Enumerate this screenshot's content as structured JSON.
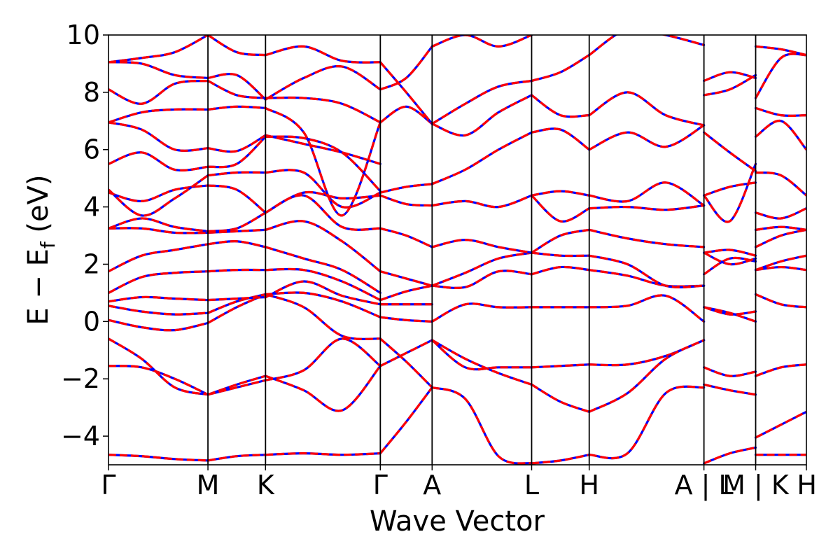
{
  "chart_data": {
    "type": "line",
    "title": "",
    "xlabel": "Wave Vector",
    "ylabel": "E − E",
    "ylabel_subscript": "f",
    "ylabel_unit": " (eV)",
    "ylim": [
      -5,
      10
    ],
    "yticks": [
      {
        "value": -4,
        "label": "−4"
      },
      {
        "value": -2,
        "label": "−2"
      },
      {
        "value": 0,
        "label": "0"
      },
      {
        "value": 2,
        "label": "2"
      },
      {
        "value": 4,
        "label": "4"
      },
      {
        "value": 6,
        "label": "6"
      },
      {
        "value": 8,
        "label": "8"
      },
      {
        "value": 10,
        "label": "10"
      }
    ],
    "high_symmetry_points": [
      {
        "label": "Γ",
        "k": 0.0
      },
      {
        "label": "M",
        "k": 0.1425
      },
      {
        "label": "K",
        "k": 0.225
      },
      {
        "label": "Γ",
        "k": 0.3895
      },
      {
        "label": "A",
        "k": 0.4637
      },
      {
        "label": "L",
        "k": 0.6063
      },
      {
        "label": "H",
        "k": 0.6888
      },
      {
        "label": "A | L",
        "k": 0.8532
      },
      {
        "label": "M | K",
        "k": 0.9273
      },
      {
        "label": "H",
        "k": 1.0
      }
    ],
    "grid": false,
    "line_styles": [
      {
        "color": "#0000ff",
        "style": "solid"
      },
      {
        "color": "#ff0000",
        "style": "dashed"
      }
    ],
    "segments": [
      {
        "from": "Γ",
        "to": "M",
        "k_range": [
          0.0,
          0.1425
        ],
        "bands": [
          [
            -4.65,
            -4.7,
            -4.8,
            -4.85
          ],
          [
            -1.55,
            -1.6,
            -2.0,
            -2.55
          ],
          [
            -0.6,
            -1.3,
            -2.3,
            -2.55
          ],
          [
            0.05,
            -0.2,
            -0.3,
            -0.05
          ],
          [
            0.55,
            0.35,
            0.25,
            0.3
          ],
          [
            0.7,
            0.85,
            0.8,
            0.75
          ],
          [
            1.0,
            1.55,
            1.7,
            1.75
          ],
          [
            1.75,
            2.3,
            2.5,
            2.7
          ],
          [
            3.25,
            3.25,
            3.1,
            3.1
          ],
          [
            3.25,
            3.6,
            3.3,
            3.15
          ],
          [
            4.5,
            4.2,
            4.6,
            4.75
          ],
          [
            4.6,
            3.7,
            4.3,
            5.1
          ],
          [
            5.5,
            5.9,
            5.3,
            5.4
          ],
          [
            6.95,
            6.7,
            6.0,
            6.05
          ],
          [
            6.95,
            7.3,
            7.4,
            7.4
          ],
          [
            8.1,
            7.6,
            8.3,
            8.4
          ],
          [
            9.05,
            9.0,
            8.6,
            8.5
          ],
          [
            9.05,
            9.2,
            9.4,
            10.0
          ]
        ]
      },
      {
        "from": "M",
        "to": "K",
        "k_range": [
          0.1425,
          0.225
        ],
        "bands": [
          [
            -4.85,
            -4.7,
            -4.65
          ],
          [
            -2.55,
            -2.2,
            -1.9
          ],
          [
            -2.55,
            -2.3,
            -2.05
          ],
          [
            -0.05,
            0.5,
            0.95
          ],
          [
            0.3,
            0.7,
            0.95
          ],
          [
            0.75,
            0.8,
            0.85
          ],
          [
            1.75,
            1.8,
            1.8
          ],
          [
            2.7,
            2.8,
            2.6
          ],
          [
            3.1,
            3.15,
            3.2
          ],
          [
            3.15,
            3.25,
            3.8
          ],
          [
            4.75,
            4.6,
            3.8
          ],
          [
            5.1,
            5.2,
            5.2
          ],
          [
            5.4,
            5.5,
            6.45
          ],
          [
            6.05,
            5.95,
            6.5
          ],
          [
            7.4,
            7.5,
            7.45
          ],
          [
            8.4,
            7.9,
            7.8
          ],
          [
            8.5,
            8.6,
            7.75
          ],
          [
            10.0,
            9.4,
            9.3
          ]
        ]
      },
      {
        "from": "K",
        "to": "Γ",
        "k_range": [
          0.225,
          0.3895
        ],
        "bands": [
          [
            -4.65,
            -4.6,
            -4.65,
            -4.6
          ],
          [
            -1.9,
            -2.4,
            -3.1,
            -1.55
          ],
          [
            -2.05,
            -1.7,
            -0.6,
            -1.55
          ],
          [
            0.95,
            0.5,
            -0.5,
            -0.6
          ],
          [
            0.95,
            1.0,
            0.7,
            0.15
          ],
          [
            0.85,
            1.4,
            0.9,
            0.6
          ],
          [
            1.8,
            1.8,
            1.4,
            0.75
          ],
          [
            2.6,
            2.2,
            1.8,
            1.0
          ],
          [
            3.2,
            3.5,
            2.8,
            1.75
          ],
          [
            3.8,
            4.4,
            3.3,
            3.25
          ],
          [
            3.8,
            4.5,
            4.3,
            4.4
          ],
          [
            5.2,
            5.2,
            4.0,
            4.5
          ],
          [
            6.45,
            6.4,
            5.9,
            4.55
          ],
          [
            6.5,
            6.2,
            5.9,
            5.5
          ],
          [
            7.45,
            6.6,
            3.7,
            6.95
          ],
          [
            7.8,
            7.8,
            7.6,
            6.95
          ],
          [
            7.75,
            8.5,
            8.9,
            8.1
          ],
          [
            9.3,
            9.6,
            9.1,
            9.05
          ]
        ]
      },
      {
        "from": "Γ",
        "to": "A",
        "k_range": [
          0.3895,
          0.4637
        ],
        "bands": [
          [
            -4.6,
            -3.5,
            -2.3
          ],
          [
            -1.55,
            -1.1,
            -0.65
          ],
          [
            -0.6,
            -1.4,
            -2.3
          ],
          [
            0.15,
            0.05,
            0.0
          ],
          [
            0.6,
            0.6,
            0.6
          ],
          [
            0.75,
            1.05,
            1.25
          ],
          [
            1.75,
            1.5,
            1.25
          ],
          [
            3.25,
            3.0,
            2.6
          ],
          [
            4.4,
            4.1,
            4.05
          ],
          [
            4.5,
            4.7,
            4.8
          ],
          [
            6.95,
            7.5,
            6.9
          ],
          [
            8.1,
            8.5,
            9.6
          ],
          [
            9.05,
            8.0,
            6.9
          ]
        ]
      },
      {
        "from": "A",
        "to": "L",
        "k_range": [
          0.4637,
          0.6063
        ],
        "bands": [
          [
            -2.3,
            -2.7,
            -4.7,
            -4.95
          ],
          [
            -0.65,
            -1.6,
            -1.6,
            -1.6
          ],
          [
            -0.65,
            -1.3,
            -1.8,
            -2.2
          ],
          [
            0.0,
            0.6,
            0.5,
            0.5
          ],
          [
            1.25,
            1.2,
            1.75,
            1.65
          ],
          [
            1.25,
            1.7,
            2.2,
            2.4
          ],
          [
            2.6,
            2.85,
            2.6,
            2.4
          ],
          [
            4.05,
            4.2,
            4.0,
            4.4
          ],
          [
            4.8,
            5.3,
            6.0,
            6.6
          ],
          [
            6.9,
            6.5,
            7.3,
            7.9
          ],
          [
            6.9,
            7.6,
            8.2,
            8.4
          ],
          [
            9.6,
            10.0,
            9.6,
            10.0
          ]
        ]
      },
      {
        "from": "L",
        "to": "H",
        "k_range": [
          0.6063,
          0.6888
        ],
        "bands": [
          [
            -4.95,
            -4.85,
            -4.65
          ],
          [
            -1.6,
            -1.55,
            -1.5
          ],
          [
            -2.2,
            -2.8,
            -3.15
          ],
          [
            0.5,
            0.5,
            0.5
          ],
          [
            1.65,
            1.9,
            1.8
          ],
          [
            2.4,
            2.3,
            2.3
          ],
          [
            2.4,
            3.0,
            3.2
          ],
          [
            4.4,
            4.55,
            4.4
          ],
          [
            4.4,
            3.5,
            3.95
          ],
          [
            6.6,
            6.7,
            6.0
          ],
          [
            7.9,
            7.2,
            7.2
          ],
          [
            8.4,
            8.7,
            9.3
          ]
        ]
      },
      {
        "from": "H",
        "to": "A",
        "k_range": [
          0.6888,
          0.8532
        ],
        "bands": [
          [
            -4.65,
            -4.6,
            -2.5,
            -2.3
          ],
          [
            -1.5,
            -1.5,
            -1.2,
            -0.65
          ],
          [
            -3.15,
            -2.5,
            -1.3,
            -0.65
          ],
          [
            0.5,
            0.55,
            0.9,
            0.0
          ],
          [
            1.8,
            1.6,
            1.25,
            1.25
          ],
          [
            2.3,
            2.0,
            1.25,
            1.25
          ],
          [
            3.2,
            2.9,
            2.7,
            2.6
          ],
          [
            4.4,
            4.2,
            4.85,
            4.05
          ],
          [
            3.95,
            4.0,
            3.9,
            4.05
          ],
          [
            6.0,
            6.6,
            6.1,
            6.85
          ],
          [
            7.2,
            8.0,
            7.2,
            6.85
          ],
          [
            9.3,
            10.2,
            10.0,
            9.65
          ]
        ]
      },
      {
        "from": "L",
        "to": "M",
        "k_range": [
          0.8532,
          0.9273
        ],
        "bands": [
          [
            -4.95,
            -4.6,
            -4.4
          ],
          [
            -1.6,
            -1.9,
            -1.75
          ],
          [
            -2.2,
            -2.4,
            -2.55
          ],
          [
            0.5,
            0.3,
            0.0
          ],
          [
            0.5,
            0.25,
            0.35
          ],
          [
            1.65,
            2.2,
            2.1
          ],
          [
            2.4,
            2.5,
            2.3
          ],
          [
            2.4,
            2.0,
            2.2
          ],
          [
            4.4,
            3.5,
            5.5
          ],
          [
            4.4,
            4.7,
            4.85
          ],
          [
            6.6,
            5.9,
            5.25
          ],
          [
            7.9,
            8.1,
            8.6
          ],
          [
            8.4,
            8.7,
            8.5
          ]
        ]
      },
      {
        "from": "K",
        "to": "H",
        "k_range": [
          0.9273,
          1.0
        ],
        "bands": [
          [
            -4.65,
            -4.65,
            -4.65
          ],
          [
            -1.9,
            -1.6,
            -1.5
          ],
          [
            -4.05,
            -3.6,
            -3.15
          ],
          [
            0.95,
            0.6,
            0.5
          ],
          [
            1.8,
            1.9,
            1.8
          ],
          [
            1.8,
            2.1,
            2.3
          ],
          [
            2.6,
            3.0,
            3.2
          ],
          [
            3.2,
            3.3,
            3.2
          ],
          [
            3.8,
            3.6,
            3.95
          ],
          [
            5.2,
            5.1,
            4.4
          ],
          [
            6.45,
            7.0,
            6.0
          ],
          [
            7.45,
            7.2,
            7.2
          ],
          [
            7.8,
            9.2,
            9.3
          ],
          [
            9.6,
            9.5,
            9.3
          ]
        ]
      }
    ]
  }
}
